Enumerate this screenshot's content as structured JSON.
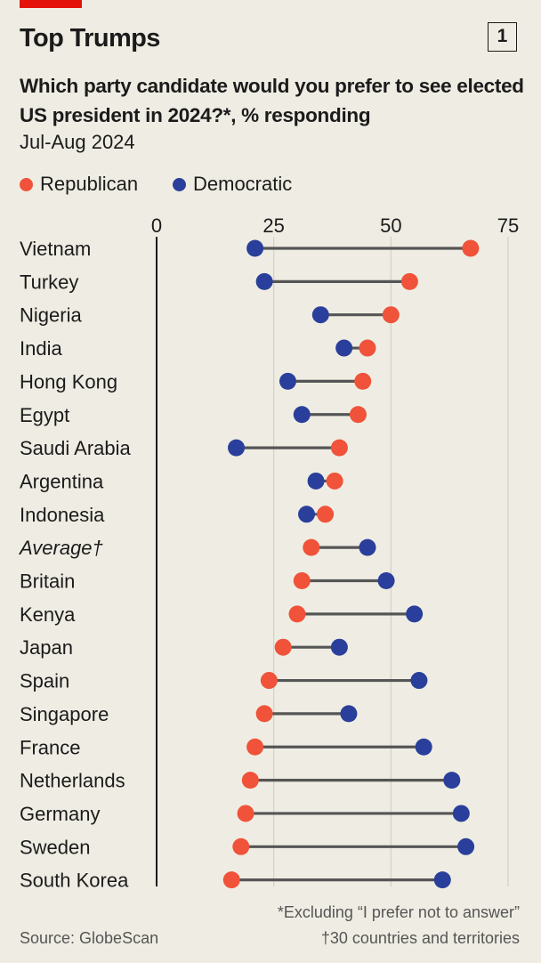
{
  "header": {
    "title": "Top Trumps",
    "chart_number": "1",
    "subtitle": "Which party candidate would you prefer to see elected US president in 2024?*, % responding",
    "date": "Jul-Aug 2024"
  },
  "legend": {
    "republican": "Republican",
    "democratic": "Democratic"
  },
  "colors": {
    "republican": "#f0523a",
    "democratic": "#2a3f9b",
    "connector": "#555555",
    "accent": "#e3120b"
  },
  "footer": {
    "footnote1": "*Excluding “I prefer not to answer”",
    "footnote2": "†30 countries and territories",
    "source": "Source: GlobeScan"
  },
  "chart_data": {
    "type": "dumbbell",
    "xlim": [
      0,
      75
    ],
    "xticks": [
      "0",
      "25",
      "50",
      "75"
    ],
    "grid": true,
    "legend_position": "top-left",
    "categories": [
      "Vietnam",
      "Turkey",
      "Nigeria",
      "India",
      "Hong Kong",
      "Egypt",
      "Saudi Arabia",
      "Argentina",
      "Indonesia",
      "Average†",
      "Britain",
      "Kenya",
      "Japan",
      "Spain",
      "Singapore",
      "France",
      "Netherlands",
      "Germany",
      "Sweden",
      "South Korea"
    ],
    "series": [
      {
        "name": "Republican",
        "values": [
          67,
          54,
          50,
          45,
          44,
          43,
          39,
          38,
          36,
          33,
          31,
          30,
          27,
          24,
          23,
          21,
          20,
          19,
          18,
          16
        ]
      },
      {
        "name": "Democratic",
        "values": [
          21,
          23,
          35,
          40,
          28,
          31,
          17,
          34,
          32,
          45,
          49,
          55,
          39,
          56,
          41,
          57,
          63,
          65,
          66,
          61
        ]
      }
    ]
  }
}
